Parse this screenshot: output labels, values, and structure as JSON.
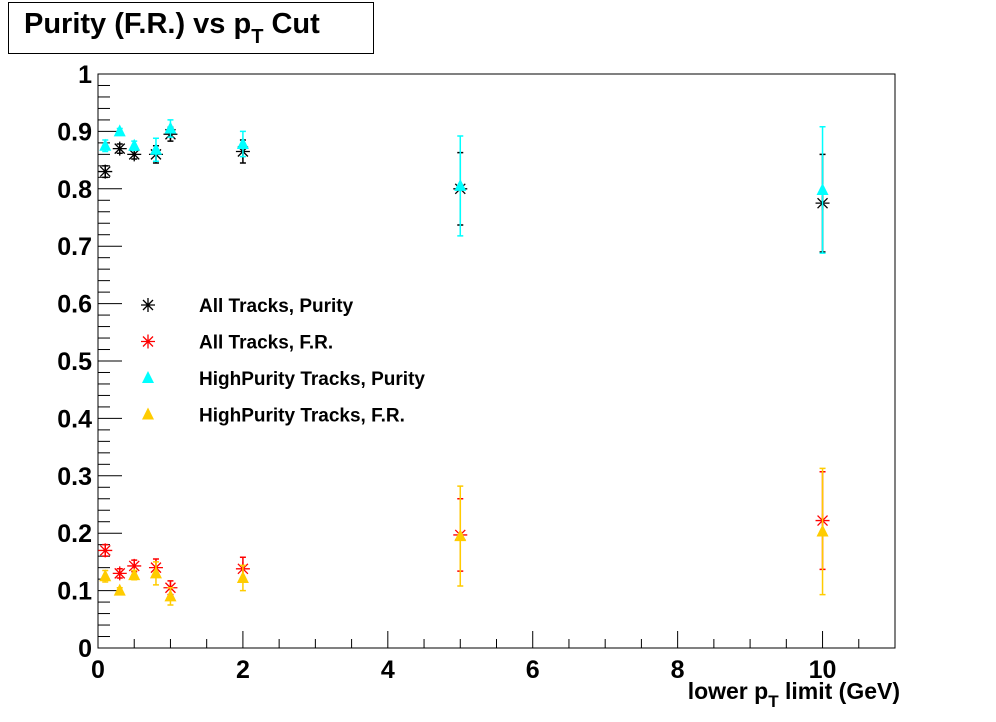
{
  "chart_data": {
    "type": "scatter",
    "title": "Purity (F.R.) vs p",
    "title_sub": "T",
    "title_suffix": " Cut",
    "xlabel": "lower p",
    "xlabel_sub": "T",
    "xlabel_suffix": " limit (GeV)",
    "ylabel": "",
    "xlim": [
      0,
      11
    ],
    "ylim": [
      0,
      1
    ],
    "x_ticks": [
      0,
      2,
      4,
      6,
      8,
      10
    ],
    "y_ticks": [
      0,
      0.1,
      0.2,
      0.3,
      0.4,
      0.5,
      0.6,
      0.7,
      0.8,
      0.9,
      1
    ],
    "y_tick_labels": [
      "0",
      "0.1",
      "0.2",
      "0.3",
      "0.4",
      "0.5",
      "0.6",
      "0.7",
      "0.8",
      "0.9",
      "1"
    ],
    "grid": false,
    "legend_placement": "center-left",
    "x": [
      0.1,
      0.3,
      0.5,
      0.8,
      1,
      2,
      5,
      10
    ],
    "series": [
      {
        "name": "All Tracks, Purity",
        "marker": "star",
        "color": "#000000",
        "values": [
          0.83,
          0.87,
          0.86,
          0.86,
          0.895,
          0.865,
          0.8,
          0.775
        ],
        "errors": [
          0.01,
          0.008,
          0.008,
          0.015,
          0.012,
          0.02,
          0.063,
          0.085
        ]
      },
      {
        "name": "All Tracks, F.R.",
        "marker": "star",
        "color": "#ff0000",
        "values": [
          0.17,
          0.13,
          0.143,
          0.14,
          0.105,
          0.138,
          0.197,
          0.222
        ],
        "errors": [
          0.01,
          0.008,
          0.01,
          0.015,
          0.012,
          0.02,
          0.063,
          0.085
        ]
      },
      {
        "name": "HighPurity Tracks, Purity",
        "marker": "triangle",
        "color": "#00ffff",
        "values": [
          0.875,
          0.9,
          0.875,
          0.868,
          0.905,
          0.878,
          0.805,
          0.798
        ],
        "errors": [
          0.01,
          0.005,
          0.008,
          0.02,
          0.015,
          0.022,
          0.087,
          0.11
        ]
      },
      {
        "name": "HighPurity Tracks, F.R.",
        "marker": "triangle",
        "color": "#ffcc00",
        "values": [
          0.125,
          0.1,
          0.127,
          0.13,
          0.09,
          0.122,
          0.195,
          0.203
        ],
        "errors": [
          0.01,
          0.005,
          0.008,
          0.02,
          0.015,
          0.022,
          0.087,
          0.11
        ]
      }
    ]
  }
}
